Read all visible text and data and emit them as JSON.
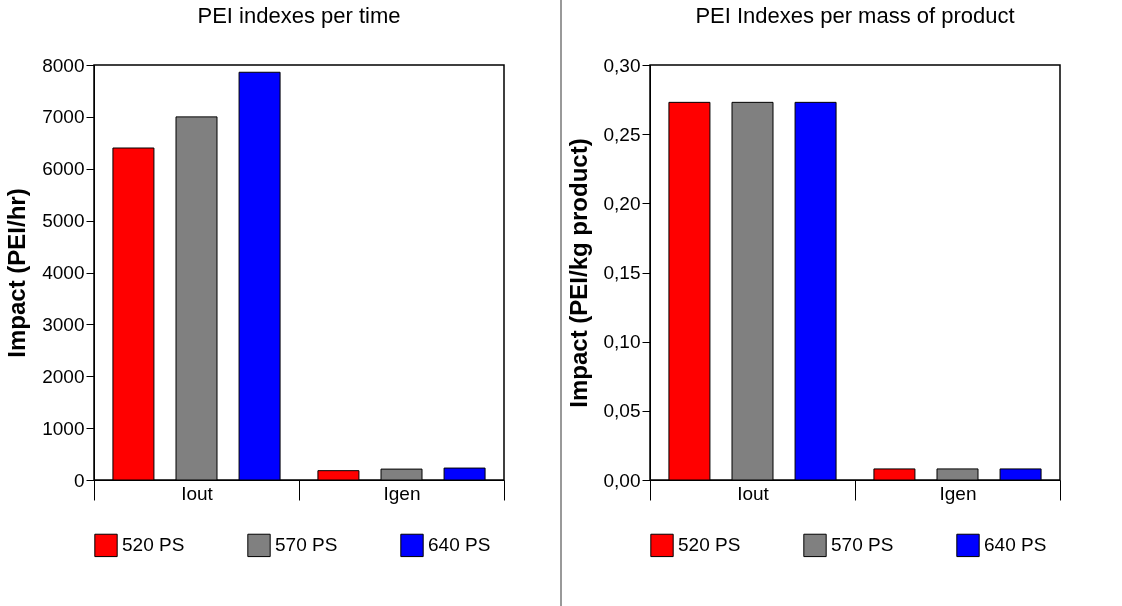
{
  "chart_data": [
    {
      "type": "bar",
      "title": "PEI indexes per time",
      "ylabel": "Impact (PEI/hr)",
      "categories": [
        "Iout",
        "Igen"
      ],
      "series": [
        {
          "name": "520 PS",
          "color": "#ff0000",
          "values": [
            6400,
            180
          ]
        },
        {
          "name": "570 PS",
          "color": "#808080",
          "values": [
            7000,
            210
          ]
        },
        {
          "name": "640 PS",
          "color": "#0000ff",
          "values": [
            7860,
            230
          ]
        }
      ],
      "ylim": [
        0,
        8000
      ],
      "yticks": [
        0,
        1000,
        2000,
        3000,
        4000,
        5000,
        6000,
        7000,
        8000
      ],
      "grid": false,
      "legend": "bottom"
    },
    {
      "type": "bar",
      "title": "PEI Indexes per mass of product",
      "ylabel": "Impact (PEI/kg product)",
      "categories": [
        "Iout",
        "Igen"
      ],
      "series": [
        {
          "name": "520 PS",
          "color": "#ff0000",
          "values": [
            0.273,
            0.008
          ]
        },
        {
          "name": "570 PS",
          "color": "#808080",
          "values": [
            0.273,
            0.008
          ]
        },
        {
          "name": "640 PS",
          "color": "#0000ff",
          "values": [
            0.273,
            0.008
          ]
        }
      ],
      "ylim": [
        0,
        0.3
      ],
      "yticks": [
        {
          "value": 0,
          "label": "0,00"
        },
        {
          "value": 0.05,
          "label": "0,05"
        },
        {
          "value": 0.1,
          "label": "0,10"
        },
        {
          "value": 0.15,
          "label": "0,15"
        },
        {
          "value": 0.2,
          "label": "0,20"
        },
        {
          "value": 0.25,
          "label": "0,25"
        },
        {
          "value": 0.3,
          "label": "0,30"
        }
      ],
      "grid": false,
      "legend": "bottom"
    }
  ]
}
